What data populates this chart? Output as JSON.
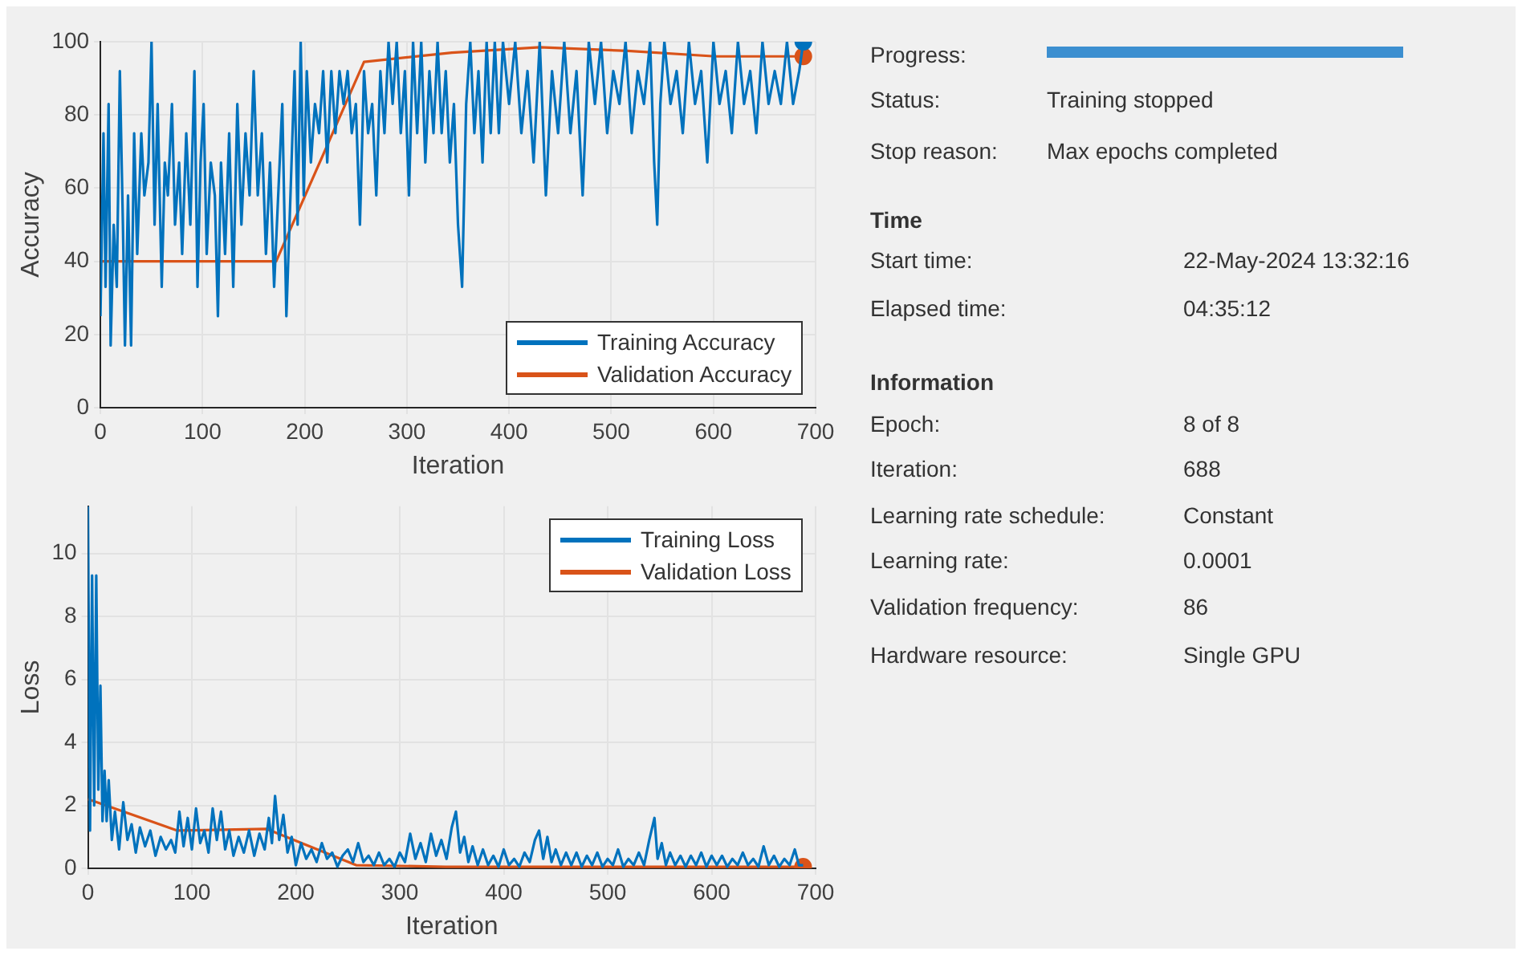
{
  "chart_data": [
    {
      "type": "line",
      "xlabel": "Iteration",
      "ylabel": "Accuracy",
      "xlim": [
        0,
        700
      ],
      "ylim": [
        0,
        100
      ],
      "xticks": [
        0,
        100,
        200,
        300,
        400,
        500,
        600,
        700
      ],
      "yticks": [
        0,
        20,
        40,
        60,
        80,
        100
      ],
      "grid": true,
      "legend": "bottom right",
      "marker": "none",
      "series": [
        {
          "name": "Training Accuracy",
          "color": "#0072bd",
          "x": [
            0,
            3,
            5,
            8,
            10,
            13,
            16,
            19,
            22,
            24,
            27,
            30,
            33,
            36,
            40,
            43,
            47,
            50,
            53,
            56,
            60,
            63,
            66,
            70,
            73,
            77,
            80,
            84,
            88,
            92,
            95,
            98,
            101,
            104,
            108,
            112,
            115,
            118,
            122,
            126,
            130,
            134,
            138,
            142,
            146,
            150,
            154,
            158,
            162,
            166,
            170,
            174,
            178,
            182,
            186,
            190,
            193,
            196,
            199,
            202,
            206,
            210,
            214,
            218,
            222,
            226,
            230,
            234,
            238,
            242,
            246,
            250,
            254,
            258,
            262,
            266,
            270,
            274,
            278,
            282,
            286,
            290,
            294,
            298,
            302,
            306,
            310,
            314,
            318,
            322,
            326,
            330,
            334,
            338,
            342,
            346,
            350,
            354,
            358,
            362,
            366,
            370,
            374,
            378,
            382,
            386,
            390,
            394,
            400,
            406,
            412,
            418,
            424,
            430,
            436,
            442,
            448,
            454,
            460,
            466,
            472,
            478,
            484,
            490,
            496,
            502,
            508,
            514,
            520,
            526,
            532,
            538,
            542,
            545,
            548,
            552,
            558,
            564,
            570,
            576,
            582,
            588,
            594,
            600,
            606,
            612,
            618,
            624,
            630,
            636,
            642,
            648,
            654,
            660,
            666,
            672,
            678,
            684,
            688
          ],
          "values": [
            25,
            75,
            33,
            83,
            17,
            50,
            33,
            92,
            50,
            17,
            58,
            17,
            75,
            42,
            75,
            58,
            67,
            100,
            50,
            83,
            33,
            67,
            58,
            83,
            50,
            67,
            42,
            75,
            50,
            92,
            33,
            67,
            83,
            42,
            67,
            58,
            25,
            67,
            42,
            75,
            33,
            83,
            50,
            75,
            58,
            92,
            58,
            75,
            42,
            67,
            33,
            58,
            83,
            25,
            58,
            92,
            50,
            100,
            58,
            92,
            67,
            83,
            75,
            92,
            67,
            92,
            75,
            92,
            83,
            92,
            75,
            83,
            50,
            92,
            75,
            83,
            58,
            92,
            75,
            100,
            83,
            100,
            75,
            92,
            58,
            100,
            75,
            100,
            67,
            92,
            75,
            100,
            75,
            92,
            67,
            83,
            50,
            33,
            83,
            100,
            75,
            92,
            67,
            100,
            75,
            100,
            75,
            100,
            83,
            100,
            75,
            92,
            67,
            100,
            58,
            92,
            75,
            100,
            75,
            92,
            58,
            100,
            83,
            100,
            75,
            92,
            83,
            100,
            75,
            92,
            83,
            100,
            67,
            50,
            83,
            100,
            83,
            92,
            75,
            100,
            83,
            92,
            67,
            100,
            83,
            92,
            75,
            100,
            83,
            92,
            75,
            100,
            83,
            92,
            83,
            100,
            83,
            92,
            100
          ]
        },
        {
          "name": "Validation Accuracy",
          "color": "#d95319",
          "x": [
            0,
            86,
            172,
            258,
            344,
            430,
            516,
            602,
            688
          ],
          "values": [
            40,
            40,
            40,
            94.5,
            97,
            98.5,
            97.5,
            96,
            96
          ]
        },
        {
          "type": "scatter",
          "marker": "circle",
          "color": "#0072bd",
          "x": [
            688
          ],
          "values": [
            100
          ]
        },
        {
          "type": "scatter",
          "marker": "circle",
          "color": "#d95319",
          "x": [
            688
          ],
          "values": [
            96
          ]
        }
      ]
    },
    {
      "type": "line",
      "xlabel": "Iteration",
      "ylabel": "Loss",
      "xlim": [
        0,
        700
      ],
      "ylim": [
        0,
        11.5
      ],
      "xticks": [
        0,
        100,
        200,
        300,
        400,
        500,
        600,
        700
      ],
      "yticks": [
        0,
        2,
        4,
        6,
        8,
        10
      ],
      "grid": true,
      "legend": "top right",
      "marker": "none",
      "series": [
        {
          "name": "Training Loss",
          "color": "#0072bd",
          "x": [
            0,
            2,
            4,
            6,
            8,
            10,
            12,
            14,
            16,
            18,
            20,
            23,
            26,
            30,
            34,
            38,
            42,
            46,
            50,
            55,
            60,
            65,
            70,
            75,
            80,
            84,
            88,
            92,
            96,
            100,
            104,
            108,
            112,
            116,
            120,
            124,
            128,
            132,
            136,
            140,
            145,
            150,
            155,
            160,
            165,
            170,
            174,
            177,
            180,
            184,
            188,
            192,
            196,
            200,
            205,
            210,
            215,
            220,
            225,
            230,
            235,
            240,
            245,
            250,
            255,
            260,
            265,
            270,
            275,
            280,
            285,
            290,
            295,
            300,
            305,
            310,
            315,
            320,
            325,
            330,
            335,
            340,
            345,
            350,
            354,
            358,
            362,
            366,
            370,
            375,
            380,
            385,
            390,
            395,
            400,
            405,
            410,
            415,
            420,
            425,
            430,
            434,
            438,
            442,
            446,
            450,
            455,
            460,
            465,
            470,
            475,
            480,
            485,
            490,
            495,
            500,
            505,
            510,
            515,
            520,
            525,
            530,
            535,
            540,
            545,
            548,
            552,
            556,
            560,
            565,
            570,
            575,
            580,
            585,
            590,
            595,
            600,
            605,
            610,
            615,
            620,
            625,
            630,
            635,
            640,
            645,
            650,
            655,
            660,
            665,
            670,
            675,
            680,
            684,
            688
          ],
          "values": [
            11.5,
            1.2,
            9.3,
            2,
            9.3,
            2.5,
            5.8,
            1.5,
            3.1,
            1.5,
            2.8,
            0.9,
            1.8,
            0.6,
            2.1,
            0.9,
            1.4,
            0.5,
            1.3,
            0.7,
            1.2,
            0.4,
            1,
            0.6,
            0.9,
            0.5,
            1.8,
            0.7,
            1.6,
            0.6,
            1.9,
            0.8,
            1.2,
            0.5,
            1.9,
            0.9,
            1.8,
            0.6,
            1.2,
            0.4,
            1,
            0.5,
            1.2,
            0.4,
            1.1,
            0.6,
            1.6,
            0.8,
            2.3,
            0.9,
            1.7,
            0.5,
            1,
            0.1,
            0.8,
            0.3,
            0.6,
            0.2,
            0.8,
            0.3,
            0.5,
            0.05,
            0.4,
            0.6,
            0.2,
            0.8,
            0.2,
            0.4,
            0.1,
            0.5,
            0.1,
            0.3,
            0.05,
            0.5,
            0.2,
            1.1,
            0.3,
            0.8,
            0.2,
            1.1,
            0.4,
            0.9,
            0.3,
            1.3,
            1.8,
            0.5,
            1,
            0.2,
            0.7,
            0.1,
            0.6,
            0.1,
            0.4,
            0.05,
            0.6,
            0.1,
            0.3,
            0.05,
            0.5,
            0.2,
            0.9,
            1.2,
            0.3,
            1,
            0.2,
            0.6,
            0.1,
            0.5,
            0.1,
            0.5,
            0.05,
            0.4,
            0.1,
            0.5,
            0.05,
            0.3,
            0.1,
            0.6,
            0.05,
            0.3,
            0.1,
            0.5,
            0.1,
            0.9,
            1.6,
            0.3,
            0.8,
            0.1,
            0.5,
            0.1,
            0.4,
            0.05,
            0.4,
            0.1,
            0.5,
            0.05,
            0.4,
            0.1,
            0.4,
            0.05,
            0.3,
            0.1,
            0.5,
            0.1,
            0.3,
            0.05,
            0.7,
            0.1,
            0.4,
            0.05,
            0.3,
            0.1,
            0.6,
            0.1,
            0.1
          ]
        },
        {
          "name": "Validation Loss",
          "color": "#d95319",
          "x": [
            0,
            86,
            172,
            258,
            344,
            430,
            516,
            602,
            688
          ],
          "values": [
            2.2,
            1.2,
            1.25,
            0.1,
            0.05,
            0.05,
            0.05,
            0.05,
            0.05
          ]
        },
        {
          "type": "scatter",
          "marker": "circle",
          "color": "#d95319",
          "x": [
            688
          ],
          "values": [
            0.05
          ]
        }
      ]
    },
    {
      "type": "other",
      "annotations": [
        "Progress:",
        "Status:",
        "Training stopped",
        "Stop reason:",
        "Max epochs completed",
        "Time",
        "Start time:",
        "22-May-2024 13:32:16",
        "Elapsed time:",
        "04:35:12",
        "Information",
        "Epoch:",
        "8 of 8",
        "Iteration:",
        "688",
        "Learning rate schedule:",
        "Constant",
        "Learning rate:",
        "0.0001",
        "Validation frequency:",
        "86",
        "Hardware resource:",
        "Single GPU"
      ]
    }
  ]
}
